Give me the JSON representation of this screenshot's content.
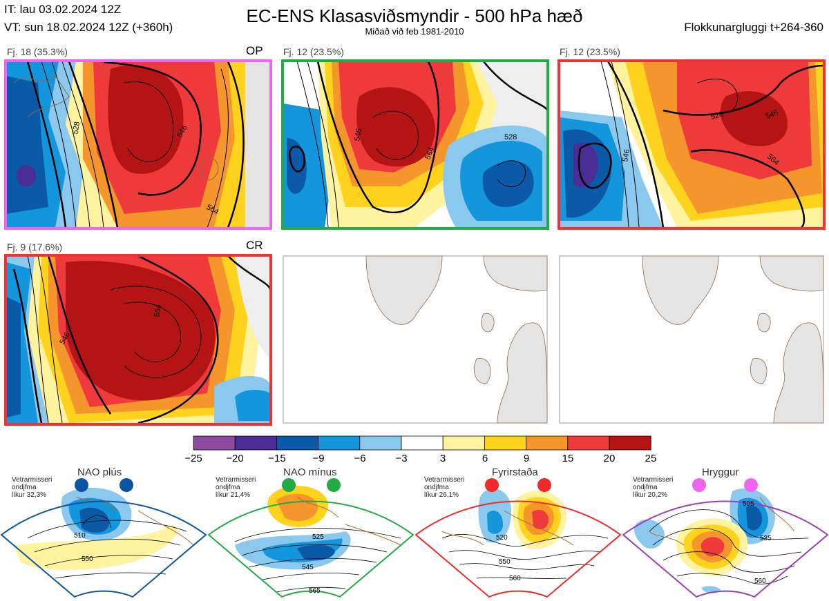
{
  "header": {
    "issued": "IT: lau 03.02.2024 12Z",
    "valid": "VT: sun 18.02.2024 12Z  (+360h)",
    "title": "EC-ENS Klasasviðsmyndir - 500 hPa hæð",
    "subtitle": "Miðað við feb 1981-2010",
    "window": "Flokkunargluggi t+264-360"
  },
  "panels": [
    {
      "label": "Fj. 18 (35.3%)",
      "tag": "OP",
      "border": "#ee66ee"
    },
    {
      "label": "Fj. 12 (23.5%)",
      "tag": "",
      "border": "#22aa44"
    },
    {
      "label": "Fj. 12 (23.5%)",
      "tag": "",
      "border": "#ee3333"
    },
    {
      "label": "Fj. 9 (17.6%)",
      "tag": "CR",
      "border": "#ee3333"
    }
  ],
  "contour_labels": [
    "528",
    "546",
    "564"
  ],
  "colorbar": {
    "ticks": [
      "−25",
      "−20",
      "−15",
      "−9",
      "−6",
      "−3",
      "3",
      "6",
      "9",
      "15",
      "20",
      "25"
    ],
    "colors": [
      "#8e4a9e",
      "#4b2d96",
      "#0a5aa8",
      "#1496dc",
      "#8ac8ee",
      "#ffffff",
      "#fff3a0",
      "#ffd21e",
      "#f5962d",
      "#ee3a3a",
      "#b41414"
    ]
  },
  "regimes": [
    {
      "name": "NAO plús",
      "info": [
        "Vetrarmisseri",
        "ondjfma",
        "líkur 32,3%"
      ],
      "color": "#0c55a6",
      "labels": [
        "510",
        "550"
      ]
    },
    {
      "name": "NAO mínus",
      "info": [
        "Vetrarmisseri",
        "ondjfma",
        "líkur 21,4%"
      ],
      "color": "#22aa44",
      "labels": [
        "525",
        "545",
        "565"
      ]
    },
    {
      "name": "Fyrirstaða",
      "info": [
        "Vetrarmisseri",
        "ondjfma",
        "líkur 26,1%"
      ],
      "color": "#ee2a2a",
      "labels": [
        "520",
        "550",
        "560"
      ]
    },
    {
      "name": "Hryggur",
      "info": [
        "Vetrarmisseri",
        "ondjfma",
        "líkur 20,2%"
      ],
      "color": "#ee66ee",
      "labels": [
        "505",
        "535",
        "560"
      ]
    }
  ]
}
